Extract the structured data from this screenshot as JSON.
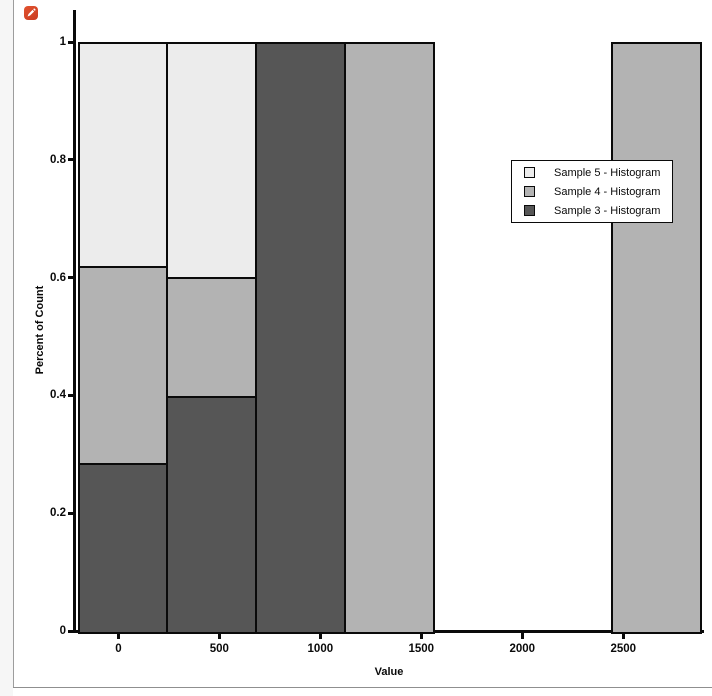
{
  "panel": {
    "edit_icon": "pencil-icon",
    "accent_color": "#d2422b"
  },
  "chart_data": {
    "type": "bar",
    "subtype": "stacked-normalized-histogram",
    "title": "",
    "xlabel": "Value",
    "ylabel": "Percent of Count",
    "xlim": [
      -210,
      2890
    ],
    "ylim": [
      0,
      1
    ],
    "grid": false,
    "x_ticks": [
      0,
      500,
      1000,
      1500,
      2000,
      2500
    ],
    "y_ticks": [
      1,
      0.8,
      0.6,
      0.4,
      0.2,
      0
    ],
    "y_tick_labels": [
      "1",
      "0.8",
      "0.6",
      "0.4",
      "0.2",
      "0"
    ],
    "legend_position": "right-center",
    "stack_order_bottom_to_top": [
      "sample3",
      "sample4",
      "sample5"
    ],
    "legend": [
      {
        "key": "sample5",
        "label": "Sample 5 - Histogram",
        "color": "#ececec"
      },
      {
        "key": "sample4",
        "label": "Sample 4 - Histogram",
        "color": "#b3b3b3"
      },
      {
        "key": "sample3",
        "label": "Sample 3 - Histogram",
        "color": "#565656"
      }
    ],
    "colors": {
      "sample3": "#565656",
      "sample4": "#b3b3b3",
      "sample5": "#ececec",
      "outline": "#0a0a0a"
    },
    "bins": [
      {
        "x0": -202,
        "x1": 238,
        "stack": {
          "sample3": 0.285,
          "sample4": 0.335,
          "sample5": 0.38
        }
      },
      {
        "x0": 238,
        "x1": 678,
        "stack": {
          "sample3": 0.4,
          "sample4": 0.2,
          "sample5": 0.4
        }
      },
      {
        "x0": 678,
        "x1": 1118,
        "stack": {
          "sample3": 1.0,
          "sample4": 0.0,
          "sample5": 0.0
        }
      },
      {
        "x0": 1118,
        "x1": 1558,
        "stack": {
          "sample3": 0.0,
          "sample4": 1.0,
          "sample5": 0.0
        }
      },
      {
        "x0": 2438,
        "x1": 2878,
        "stack": {
          "sample3": 0.0,
          "sample4": 1.0,
          "sample5": 0.0
        }
      }
    ]
  }
}
